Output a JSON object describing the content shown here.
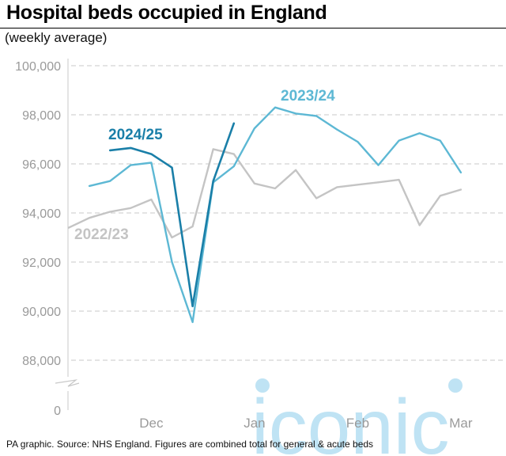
{
  "title": "Hospital beds occupied in England",
  "subtitle": "(weekly average)",
  "source": "PA graphic. Source: NHS England. Figures are combined total for general & acute beds",
  "watermark": "iconic",
  "colors": {
    "s2024": "#1a7fa8",
    "s2023": "#5db8d4",
    "s2022": "#c4c4c4",
    "grid": "#c8c8c8",
    "axis_text": "#9a9a9a",
    "watermark": "#bfe3f4"
  },
  "chart_data": {
    "type": "line",
    "ylabel": "",
    "xlabel": "",
    "ylim": [
      88000,
      100000
    ],
    "y_axis_break": true,
    "y_ticks": [
      "100,000",
      "98,000",
      "96,000",
      "94,000",
      "92,000",
      "90,000",
      "88,000",
      "0"
    ],
    "y_tick_values": [
      100000,
      98000,
      96000,
      94000,
      92000,
      90000,
      88000,
      0
    ],
    "x_ticks": [
      "Dec",
      "Jan",
      "Feb",
      "Mar"
    ],
    "x_tick_weeks": [
      4,
      9,
      14,
      19
    ],
    "grid": true,
    "series": [
      {
        "name": "2024/25",
        "color_key": "s2024",
        "weeks": [
          2,
          3,
          4,
          5,
          6,
          7,
          8,
          9
        ],
        "values": [
          96550,
          96650,
          96400,
          95850,
          90200,
          95300,
          97650,
          null
        ]
      },
      {
        "name": "2023/24",
        "color_key": "s2023",
        "weeks": [
          1,
          2,
          3,
          4,
          5,
          6,
          7,
          8,
          9,
          10,
          11,
          12,
          13,
          14,
          15,
          16,
          17,
          18,
          19,
          20
        ],
        "values": [
          95100,
          95300,
          95950,
          96050,
          92000,
          89550,
          95250,
          95900,
          97450,
          98300,
          98050,
          97950,
          97400,
          96900,
          95950,
          96950,
          97250,
          96950,
          95650,
          null
        ]
      },
      {
        "name": "2022/23",
        "color_key": "s2022",
        "weeks": [
          0,
          1,
          2,
          3,
          4,
          5,
          6,
          7,
          8,
          9,
          10,
          11,
          12,
          13,
          14,
          15,
          16,
          17,
          18,
          19,
          20
        ],
        "values": [
          93400,
          93800,
          94050,
          94200,
          94550,
          93000,
          93450,
          96600,
          96400,
          95200,
          95000,
          95750,
          94600,
          95050,
          95150,
          95250,
          95350,
          93500,
          94700,
          94950,
          null
        ]
      }
    ],
    "series_label_positions": [
      "upper-left",
      "top-right",
      "left"
    ]
  }
}
